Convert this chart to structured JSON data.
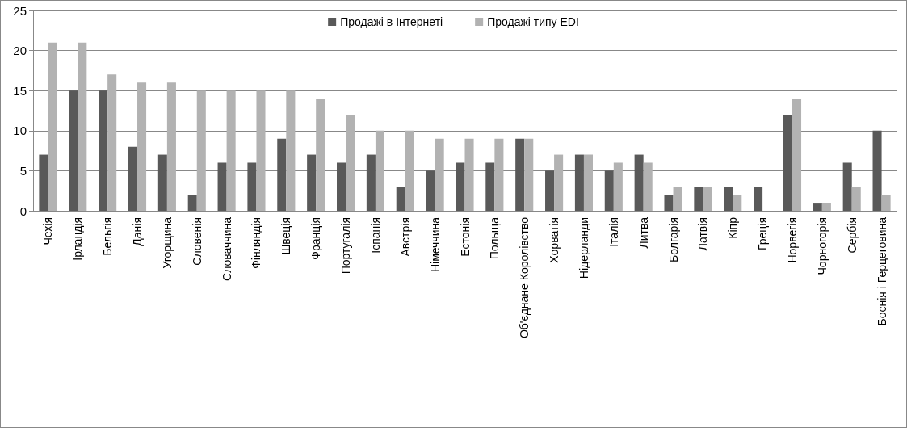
{
  "chart_data": {
    "type": "bar",
    "categories": [
      "Чехія",
      "Ірландія",
      "Бельгія",
      "Данія",
      "Угорщина",
      "Словенія",
      "Словаччина",
      "Фінляндія",
      "Швеція",
      "Франція",
      "Португалія",
      "Іспанія",
      "Австрія",
      "Німеччина",
      "Естонія",
      "Польща",
      "Об'єднане Королівство",
      "Хорватія",
      "Нідерланди",
      "Італія",
      "Литва",
      "Болгарія",
      "Латвія",
      "Кіпр",
      "Греція",
      "Норвегія",
      "Чорногорія",
      "Сербія",
      "Боснія і Герцеговина"
    ],
    "series": [
      {
        "name": "Продажі в Інтернеті",
        "color": "#595959",
        "values": [
          7,
          15,
          15,
          8,
          7,
          2,
          6,
          6,
          9,
          7,
          6,
          7,
          3,
          5,
          6,
          6,
          9,
          5,
          7,
          5,
          7,
          2,
          3,
          3,
          3,
          12,
          1,
          6,
          10
        ]
      },
      {
        "name": "Продажі типу EDI",
        "color": "#b2b2b2",
        "values": [
          21,
          21,
          17,
          16,
          16,
          15,
          15,
          15,
          15,
          14,
          12,
          10,
          10,
          9,
          9,
          9,
          9,
          7,
          7,
          6,
          6,
          3,
          3,
          2,
          0,
          14,
          1,
          3,
          2
        ]
      }
    ],
    "ylim": [
      0,
      25
    ],
    "yticks": [
      0,
      5,
      10,
      15,
      20,
      25
    ],
    "grid": "y",
    "legend": "top"
  }
}
